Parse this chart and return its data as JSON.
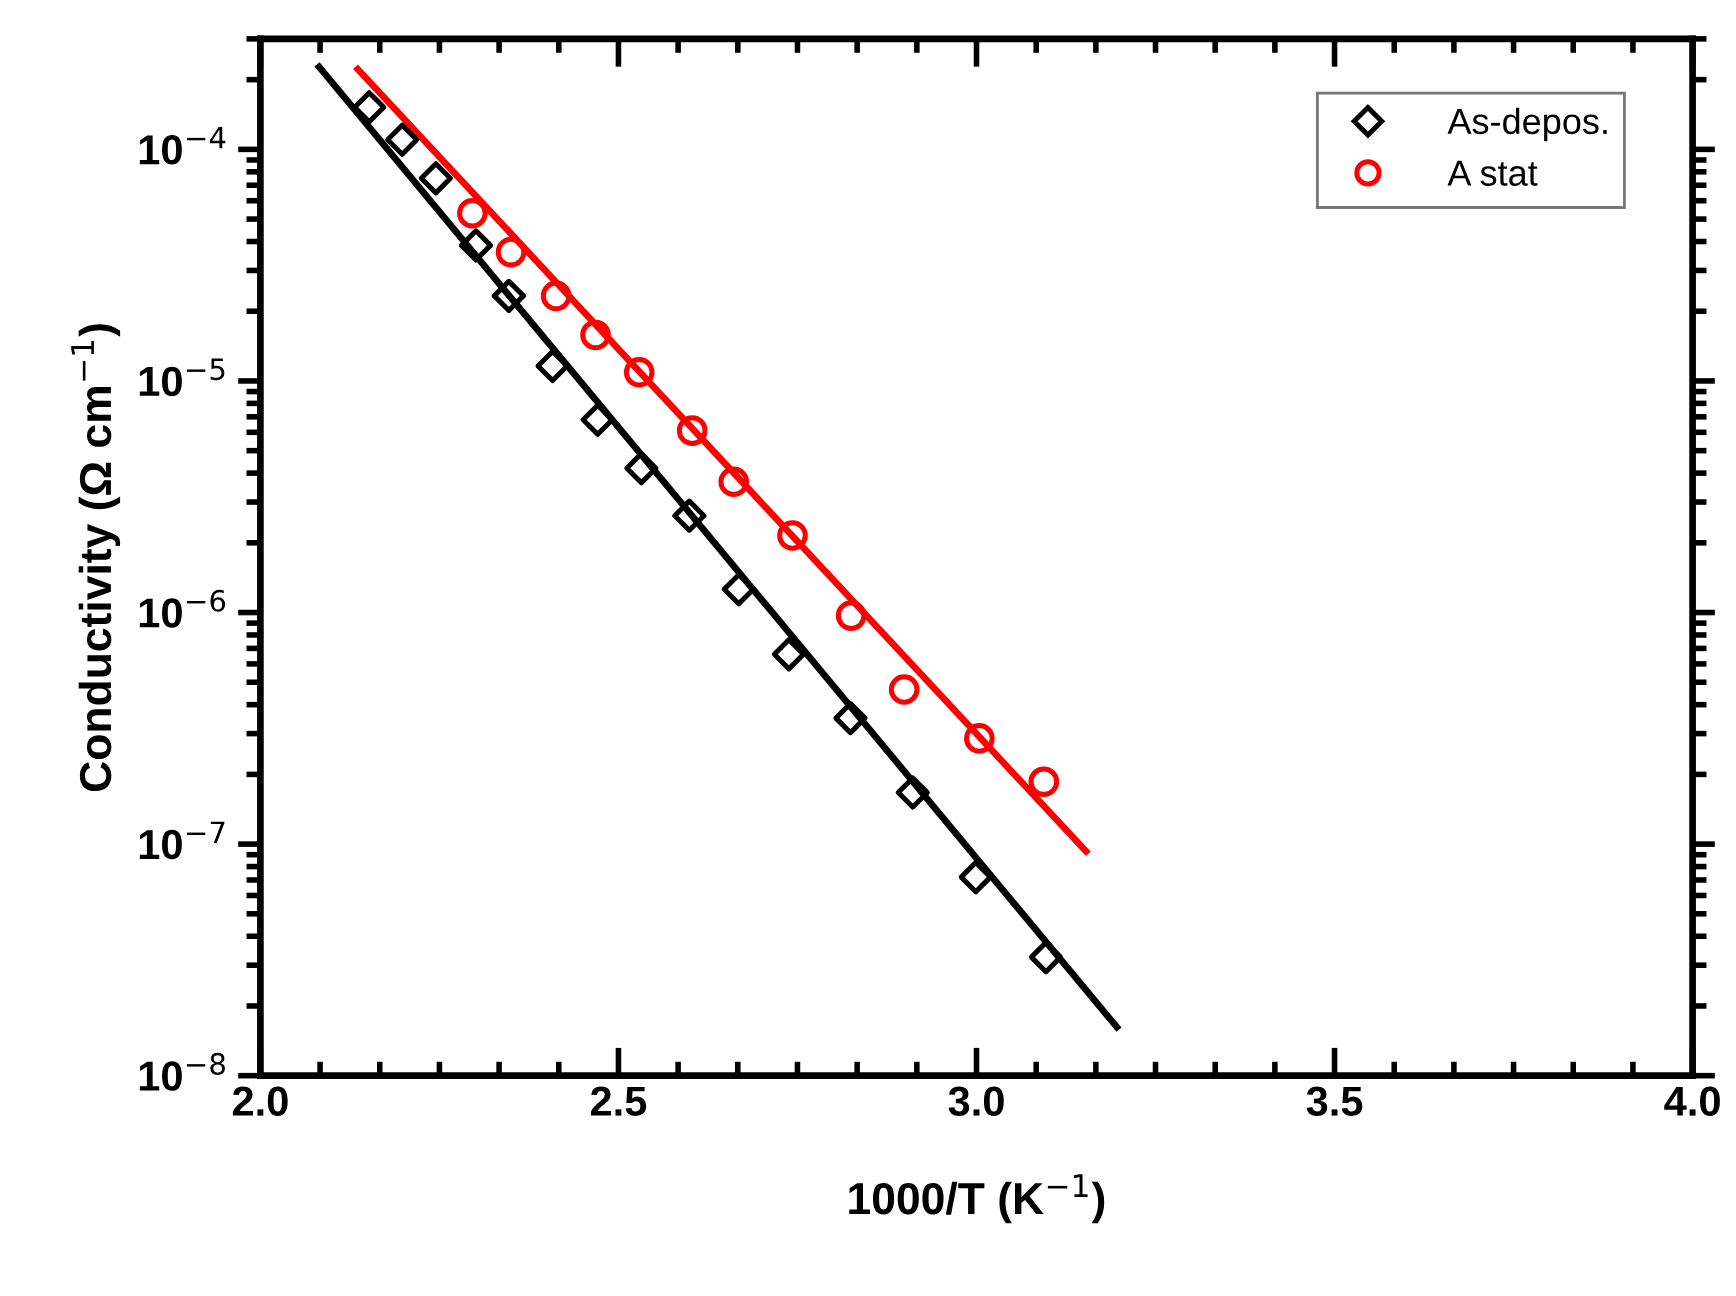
{
  "chart_data": {
    "type": "scatter",
    "xlabel": "1000/T (K$^{−1}$)",
    "ylabel": "Conductivity (Ω cm$^{−1}$)",
    "log": "y",
    "xlim": [
      2.0,
      4.0
    ],
    "ylim": [
      1e-08,
      0.0003
    ],
    "xticks": [
      {
        "value": 2.0,
        "label": "2.0"
      },
      {
        "value": 2.5,
        "label": "2.5"
      },
      {
        "value": 3.0,
        "label": "3.0"
      },
      {
        "value": 3.5,
        "label": "3.5"
      },
      {
        "value": 4.0,
        "label": "4.0"
      }
    ],
    "yticks": [
      {
        "value": 1e-08,
        "label": "10$^{−8}$"
      },
      {
        "value": 1e-07,
        "label": "10$^{−7}$"
      },
      {
        "value": 1e-06,
        "label": "10$^{−6}$"
      },
      {
        "value": 1e-05,
        "label": "10$^{−5}$"
      },
      {
        "value": 0.0001,
        "label": "10$^{−4}$"
      }
    ],
    "grid": false,
    "legend": "top right",
    "series": [
      {
        "name": "As-depos.",
        "color": "#000000",
        "marker": "diamond",
        "x": [
          2.152,
          2.198,
          2.245,
          2.301,
          2.347,
          2.408,
          2.471,
          2.532,
          2.599,
          2.668,
          2.738,
          2.824,
          2.911,
          2.999,
          3.097
        ],
        "values": [
          0.000152,
          0.00011,
          7.5e-05,
          3.85e-05,
          2.33e-05,
          1.16e-05,
          6.8e-06,
          4.2e-06,
          2.62e-06,
          1.26e-06,
          6.6e-07,
          3.5e-07,
          1.67e-07,
          7.2e-08,
          3.25e-08
        ]
      },
      {
        "name": "A stat",
        "color": "#ff0000",
        "marker": "circle",
        "x": [
          2.296,
          2.35,
          2.413,
          2.468,
          2.529,
          2.603,
          2.661,
          2.743,
          2.825,
          2.899,
          3.004,
          3.094
        ],
        "values": [
          5.3e-05,
          3.6e-05,
          2.33e-05,
          1.58e-05,
          1.09e-05,
          6.1e-06,
          3.67e-06,
          2.15e-06,
          9.7e-07,
          4.65e-07,
          2.86e-07,
          1.86e-07
        ]
      },
      {
        "type": "line",
        "color": "#000000",
        "line_style": "solid",
        "x": [
          2.082,
          3.196
        ],
        "values": [
          0.000227,
          1.62e-08
        ]
      },
      {
        "type": "line",
        "color": "#ff0000",
        "line_style": "solid",
        "x": [
          2.136,
          3.153
        ],
        "values": [
          0.000222,
          9.3e-08
        ]
      }
    ]
  }
}
